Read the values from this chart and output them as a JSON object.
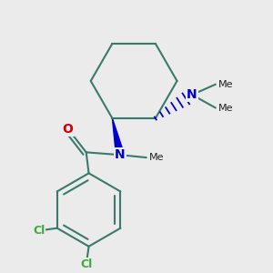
{
  "background_color": "#ebebeb",
  "bond_color": "#3a7a6a",
  "bond_width": 1.5,
  "n_color": "#0000cc",
  "o_color": "#cc0000",
  "cl_color": "#3aaa3a",
  "figsize": [
    3.0,
    3.0
  ],
  "dpi": 100,
  "xlim": [
    0.0,
    1.0
  ],
  "ylim": [
    0.0,
    1.0
  ]
}
